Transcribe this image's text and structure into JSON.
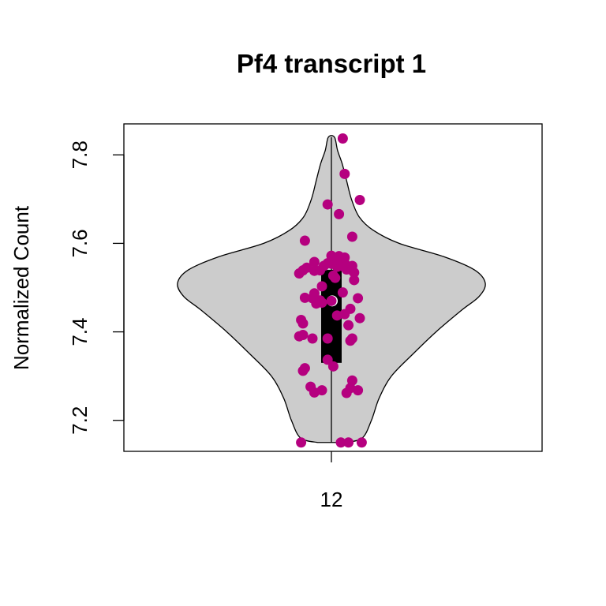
{
  "chart_data": {
    "type": "violin",
    "title": "Pf4 transcript 1",
    "xlabel": "",
    "ylabel": "Normalized Count",
    "categories": [
      "12"
    ],
    "yticks": [
      "7.2",
      "7.4",
      "7.6",
      "7.8"
    ],
    "ylim": [
      7.13,
      7.87
    ],
    "grid": false,
    "legend": "none",
    "colors": {
      "violin_fill": "#cccccc",
      "points": "#b5007f",
      "box": "#000000",
      "median": "#ffffff"
    },
    "box": {
      "q1": 7.33,
      "median": 7.47,
      "q3": 7.54,
      "min": 7.15,
      "max": 7.84
    },
    "violin_profile": [
      [
        7.15,
        0.09
      ],
      [
        7.16,
        0.2
      ],
      [
        7.2,
        0.26
      ],
      [
        7.25,
        0.31
      ],
      [
        7.3,
        0.39
      ],
      [
        7.35,
        0.53
      ],
      [
        7.4,
        0.68
      ],
      [
        7.45,
        0.85
      ],
      [
        7.48,
        0.96
      ],
      [
        7.51,
        1.0
      ],
      [
        7.54,
        0.93
      ],
      [
        7.57,
        0.73
      ],
      [
        7.6,
        0.44
      ],
      [
        7.63,
        0.27
      ],
      [
        7.66,
        0.18
      ],
      [
        7.7,
        0.13
      ],
      [
        7.74,
        0.1
      ],
      [
        7.78,
        0.07
      ],
      [
        7.81,
        0.04
      ],
      [
        7.84,
        0.02
      ]
    ],
    "points": [
      {
        "x": -0.16,
        "y": 7.15
      },
      {
        "x": 0.05,
        "y": 7.15
      },
      {
        "x": 0.09,
        "y": 7.15
      },
      {
        "x": 0.16,
        "y": 7.15
      },
      {
        "x": 0.08,
        "y": 7.262
      },
      {
        "x": 0.14,
        "y": 7.268
      },
      {
        "x": -0.09,
        "y": 7.263
      },
      {
        "x": -0.05,
        "y": 7.268
      },
      {
        "x": -0.11,
        "y": 7.276
      },
      {
        "x": 0.1,
        "y": 7.273
      },
      {
        "x": 0.11,
        "y": 7.29
      },
      {
        "x": -0.15,
        "y": 7.312
      },
      {
        "x": -0.14,
        "y": 7.318
      },
      {
        "x": 0.01,
        "y": 7.322
      },
      {
        "x": -0.02,
        "y": 7.337
      },
      {
        "x": 0.1,
        "y": 7.38
      },
      {
        "x": 0.11,
        "y": 7.385
      },
      {
        "x": -0.02,
        "y": 7.385
      },
      {
        "x": -0.1,
        "y": 7.385
      },
      {
        "x": -0.17,
        "y": 7.39
      },
      {
        "x": -0.15,
        "y": 7.393
      },
      {
        "x": 0.09,
        "y": 7.415
      },
      {
        "x": -0.15,
        "y": 7.419
      },
      {
        "x": -0.16,
        "y": 7.427
      },
      {
        "x": 0.15,
        "y": 7.431
      },
      {
        "x": 0.03,
        "y": 7.437
      },
      {
        "x": 0.07,
        "y": 7.44
      },
      {
        "x": 0.1,
        "y": 7.452
      },
      {
        "x": -0.08,
        "y": 7.464
      },
      {
        "x": -0.06,
        "y": 7.471
      },
      {
        "x": -0.05,
        "y": 7.466
      },
      {
        "x": 0.0,
        "y": 7.47
      },
      {
        "x": 0.14,
        "y": 7.476
      },
      {
        "x": -0.1,
        "y": 7.476
      },
      {
        "x": -0.14,
        "y": 7.477
      },
      {
        "x": -0.09,
        "y": 7.487
      },
      {
        "x": 0.06,
        "y": 7.489
      },
      {
        "x": -0.05,
        "y": 7.503
      },
      {
        "x": 0.12,
        "y": 7.517
      },
      {
        "x": 0.02,
        "y": 7.522
      },
      {
        "x": 0.01,
        "y": 7.527
      },
      {
        "x": -0.17,
        "y": 7.532
      },
      {
        "x": 0.12,
        "y": 7.534
      },
      {
        "x": -0.15,
        "y": 7.539
      },
      {
        "x": -0.09,
        "y": 7.538
      },
      {
        "x": -0.06,
        "y": 7.539
      },
      {
        "x": 0.1,
        "y": 7.541
      },
      {
        "x": 0.08,
        "y": 7.541
      },
      {
        "x": -0.13,
        "y": 7.545
      },
      {
        "x": 0.03,
        "y": 7.547
      },
      {
        "x": 0.06,
        "y": 7.548
      },
      {
        "x": 0.11,
        "y": 7.549
      },
      {
        "x": -0.04,
        "y": 7.549
      },
      {
        "x": 0.0,
        "y": 7.554
      },
      {
        "x": 0.07,
        "y": 7.555
      },
      {
        "x": -0.02,
        "y": 7.555
      },
      {
        "x": -0.09,
        "y": 7.558
      },
      {
        "x": 0.04,
        "y": 7.563
      },
      {
        "x": 0.07,
        "y": 7.568
      },
      {
        "x": 0.04,
        "y": 7.571
      },
      {
        "x": 0.0,
        "y": 7.572
      },
      {
        "x": -0.14,
        "y": 7.606
      },
      {
        "x": 0.11,
        "y": 7.615
      },
      {
        "x": 0.04,
        "y": 7.666
      },
      {
        "x": -0.02,
        "y": 7.688
      },
      {
        "x": 0.15,
        "y": 7.698
      },
      {
        "x": 0.07,
        "y": 7.757
      },
      {
        "x": 0.06,
        "y": 7.837
      }
    ]
  }
}
